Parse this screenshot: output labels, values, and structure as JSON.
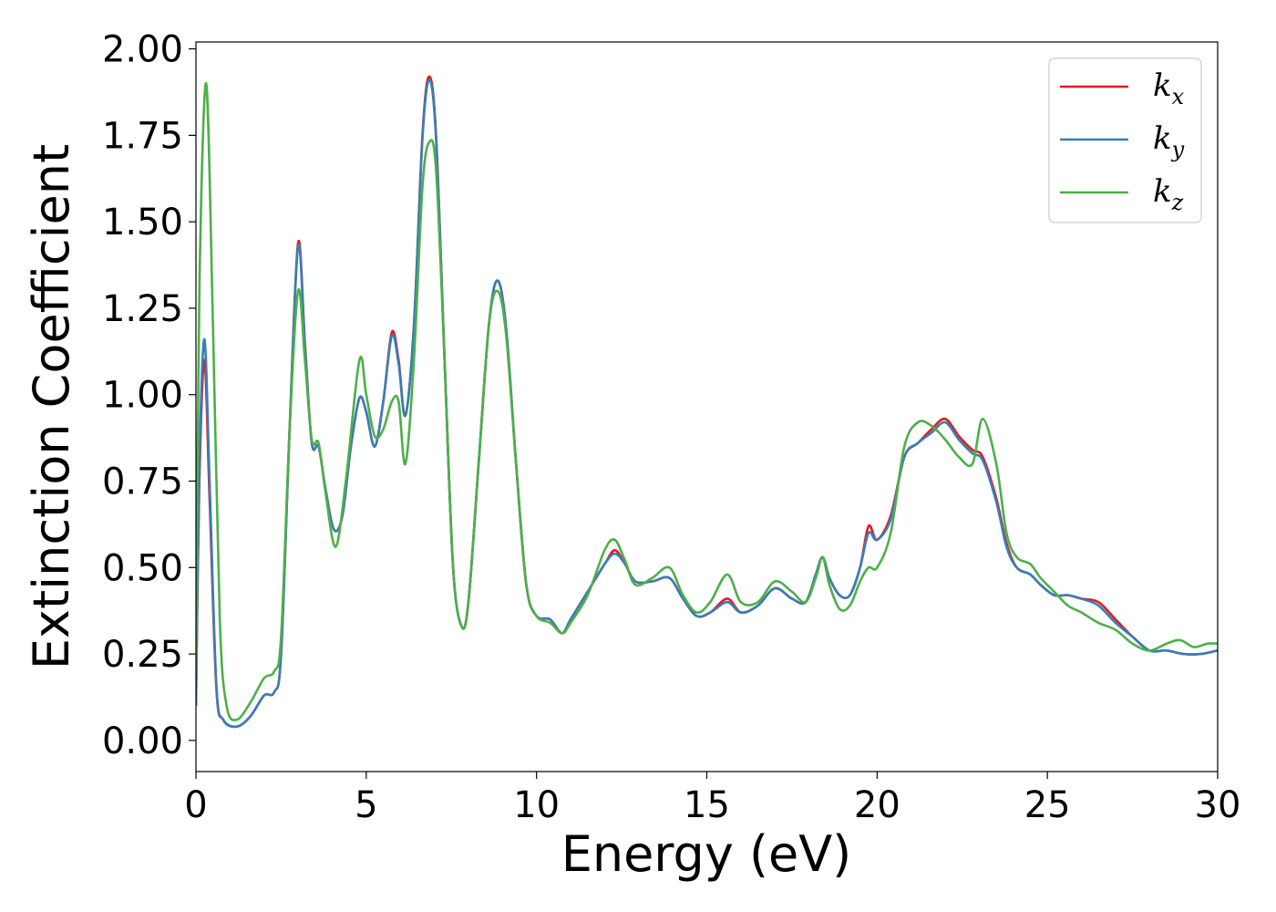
{
  "chart_data": {
    "type": "line",
    "xlabel": "Energy (eV)",
    "ylabel": "Extinction Coefficient",
    "xlim": [
      0,
      30
    ],
    "ylim": [
      -0.09,
      2.02
    ],
    "x_ticks": [
      0,
      5,
      10,
      15,
      20,
      25,
      30
    ],
    "x_tick_labels": [
      "0",
      "5",
      "10",
      "15",
      "20",
      "25",
      "30"
    ],
    "y_ticks": [
      0,
      0.25,
      0.5,
      0.75,
      1.0,
      1.25,
      1.5,
      1.75,
      2.0
    ],
    "y_tick_labels": [
      "0.00",
      "0.25",
      "0.50",
      "0.75",
      "1.00",
      "1.25",
      "1.50",
      "1.75",
      "2.00"
    ],
    "grid": false,
    "legend_position": "top-right",
    "series": [
      {
        "name": "k_x",
        "legend_base": "k",
        "legend_sub": "x",
        "color": "#e41a1c",
        "points": [
          [
            0,
            0.1
          ],
          [
            0.1,
            0.75
          ],
          [
            0.25,
            1.1
          ],
          [
            0.4,
            0.7
          ],
          [
            0.6,
            0.15
          ],
          [
            0.8,
            0.06
          ],
          [
            1.2,
            0.04
          ],
          [
            1.6,
            0.07
          ],
          [
            2.0,
            0.13
          ],
          [
            2.3,
            0.14
          ],
          [
            2.5,
            0.25
          ],
          [
            2.75,
            0.9
          ],
          [
            3.0,
            1.44
          ],
          [
            3.2,
            1.15
          ],
          [
            3.4,
            0.86
          ],
          [
            3.6,
            0.85
          ],
          [
            3.8,
            0.73
          ],
          [
            4.05,
            0.61
          ],
          [
            4.3,
            0.65
          ],
          [
            4.55,
            0.85
          ],
          [
            4.8,
            0.99
          ],
          [
            5.0,
            0.95
          ],
          [
            5.25,
            0.85
          ],
          [
            5.5,
            0.98
          ],
          [
            5.75,
            1.18
          ],
          [
            5.95,
            1.1
          ],
          [
            6.15,
            0.94
          ],
          [
            6.4,
            1.2
          ],
          [
            6.65,
            1.75
          ],
          [
            6.85,
            1.92
          ],
          [
            7.05,
            1.75
          ],
          [
            7.3,
            1.1
          ],
          [
            7.55,
            0.5
          ],
          [
            7.8,
            0.33
          ],
          [
            8.0,
            0.4
          ],
          [
            8.3,
            0.8
          ],
          [
            8.6,
            1.2
          ],
          [
            8.85,
            1.33
          ],
          [
            9.1,
            1.2
          ],
          [
            9.4,
            0.8
          ],
          [
            9.7,
            0.45
          ],
          [
            10.0,
            0.36
          ],
          [
            10.4,
            0.35
          ],
          [
            10.75,
            0.31
          ],
          [
            11.0,
            0.35
          ],
          [
            11.5,
            0.43
          ],
          [
            12.0,
            0.51
          ],
          [
            12.3,
            0.55
          ],
          [
            12.6,
            0.51
          ],
          [
            12.9,
            0.46
          ],
          [
            13.4,
            0.46
          ],
          [
            13.9,
            0.47
          ],
          [
            14.3,
            0.41
          ],
          [
            14.7,
            0.36
          ],
          [
            15.1,
            0.37
          ],
          [
            15.6,
            0.41
          ],
          [
            16.0,
            0.37
          ],
          [
            16.5,
            0.39
          ],
          [
            17.0,
            0.44
          ],
          [
            17.5,
            0.41
          ],
          [
            17.9,
            0.4
          ],
          [
            18.2,
            0.48
          ],
          [
            18.4,
            0.53
          ],
          [
            18.6,
            0.47
          ],
          [
            18.9,
            0.42
          ],
          [
            19.2,
            0.42
          ],
          [
            19.5,
            0.5
          ],
          [
            19.75,
            0.62
          ],
          [
            20.0,
            0.58
          ],
          [
            20.4,
            0.65
          ],
          [
            20.8,
            0.82
          ],
          [
            21.2,
            0.86
          ],
          [
            21.6,
            0.9
          ],
          [
            22.0,
            0.93
          ],
          [
            22.4,
            0.88
          ],
          [
            22.8,
            0.84
          ],
          [
            23.1,
            0.82
          ],
          [
            23.5,
            0.7
          ],
          [
            23.8,
            0.57
          ],
          [
            24.1,
            0.5
          ],
          [
            24.5,
            0.48
          ],
          [
            24.8,
            0.45
          ],
          [
            25.2,
            0.42
          ],
          [
            25.6,
            0.42
          ],
          [
            26.0,
            0.41
          ],
          [
            26.5,
            0.4
          ],
          [
            27.0,
            0.35
          ],
          [
            27.5,
            0.3
          ],
          [
            28.0,
            0.26
          ],
          [
            28.5,
            0.26
          ],
          [
            29.0,
            0.25
          ],
          [
            29.5,
            0.25
          ],
          [
            30.0,
            0.26
          ]
        ]
      },
      {
        "name": "k_y",
        "legend_base": "k",
        "legend_sub": "y",
        "color": "#377eb8",
        "points": [
          [
            0,
            0.1
          ],
          [
            0.1,
            0.8
          ],
          [
            0.25,
            1.16
          ],
          [
            0.4,
            0.75
          ],
          [
            0.6,
            0.16
          ],
          [
            0.8,
            0.06
          ],
          [
            1.2,
            0.04
          ],
          [
            1.6,
            0.07
          ],
          [
            2.0,
            0.13
          ],
          [
            2.3,
            0.14
          ],
          [
            2.5,
            0.25
          ],
          [
            2.75,
            0.9
          ],
          [
            3.0,
            1.43
          ],
          [
            3.2,
            1.14
          ],
          [
            3.4,
            0.86
          ],
          [
            3.6,
            0.85
          ],
          [
            3.8,
            0.73
          ],
          [
            4.05,
            0.61
          ],
          [
            4.3,
            0.65
          ],
          [
            4.55,
            0.85
          ],
          [
            4.8,
            0.99
          ],
          [
            5.0,
            0.95
          ],
          [
            5.25,
            0.85
          ],
          [
            5.5,
            0.98
          ],
          [
            5.75,
            1.17
          ],
          [
            5.95,
            1.09
          ],
          [
            6.15,
            0.94
          ],
          [
            6.4,
            1.2
          ],
          [
            6.65,
            1.74
          ],
          [
            6.85,
            1.91
          ],
          [
            7.05,
            1.74
          ],
          [
            7.3,
            1.1
          ],
          [
            7.55,
            0.5
          ],
          [
            7.8,
            0.33
          ],
          [
            8.0,
            0.4
          ],
          [
            8.3,
            0.8
          ],
          [
            8.6,
            1.2
          ],
          [
            8.85,
            1.33
          ],
          [
            9.1,
            1.2
          ],
          [
            9.4,
            0.8
          ],
          [
            9.7,
            0.45
          ],
          [
            10.0,
            0.36
          ],
          [
            10.4,
            0.35
          ],
          [
            10.75,
            0.31
          ],
          [
            11.0,
            0.35
          ],
          [
            11.5,
            0.43
          ],
          [
            12.0,
            0.51
          ],
          [
            12.3,
            0.54
          ],
          [
            12.6,
            0.51
          ],
          [
            12.9,
            0.46
          ],
          [
            13.4,
            0.46
          ],
          [
            13.9,
            0.47
          ],
          [
            14.3,
            0.41
          ],
          [
            14.7,
            0.36
          ],
          [
            15.1,
            0.37
          ],
          [
            15.6,
            0.4
          ],
          [
            16.0,
            0.37
          ],
          [
            16.5,
            0.39
          ],
          [
            17.0,
            0.44
          ],
          [
            17.5,
            0.41
          ],
          [
            17.9,
            0.4
          ],
          [
            18.2,
            0.48
          ],
          [
            18.4,
            0.53
          ],
          [
            18.6,
            0.47
          ],
          [
            18.9,
            0.42
          ],
          [
            19.2,
            0.42
          ],
          [
            19.5,
            0.5
          ],
          [
            19.75,
            0.6
          ],
          [
            20.0,
            0.58
          ],
          [
            20.4,
            0.64
          ],
          [
            20.8,
            0.82
          ],
          [
            21.2,
            0.86
          ],
          [
            21.6,
            0.89
          ],
          [
            22.0,
            0.92
          ],
          [
            22.4,
            0.87
          ],
          [
            22.8,
            0.83
          ],
          [
            23.1,
            0.81
          ],
          [
            23.5,
            0.69
          ],
          [
            23.8,
            0.56
          ],
          [
            24.1,
            0.5
          ],
          [
            24.5,
            0.48
          ],
          [
            24.8,
            0.45
          ],
          [
            25.2,
            0.42
          ],
          [
            25.6,
            0.42
          ],
          [
            26.0,
            0.41
          ],
          [
            26.5,
            0.39
          ],
          [
            27.0,
            0.34
          ],
          [
            27.5,
            0.3
          ],
          [
            28.0,
            0.26
          ],
          [
            28.5,
            0.26
          ],
          [
            29.0,
            0.25
          ],
          [
            29.5,
            0.25
          ],
          [
            30.0,
            0.26
          ]
        ]
      },
      {
        "name": "k_z",
        "legend_base": "k",
        "legend_sub": "z",
        "color": "#4daf4a",
        "points": [
          [
            0,
            0.2
          ],
          [
            0.1,
            1.3
          ],
          [
            0.3,
            1.9
          ],
          [
            0.5,
            1.2
          ],
          [
            0.7,
            0.35
          ],
          [
            0.9,
            0.1
          ],
          [
            1.2,
            0.06
          ],
          [
            1.6,
            0.11
          ],
          [
            2.0,
            0.18
          ],
          [
            2.3,
            0.2
          ],
          [
            2.5,
            0.3
          ],
          [
            2.75,
            0.9
          ],
          [
            3.0,
            1.3
          ],
          [
            3.2,
            1.1
          ],
          [
            3.4,
            0.87
          ],
          [
            3.6,
            0.86
          ],
          [
            3.8,
            0.72
          ],
          [
            4.1,
            0.56
          ],
          [
            4.4,
            0.75
          ],
          [
            4.8,
            1.1
          ],
          [
            5.0,
            1.0
          ],
          [
            5.25,
            0.88
          ],
          [
            5.5,
            0.9
          ],
          [
            5.75,
            0.98
          ],
          [
            5.95,
            0.98
          ],
          [
            6.15,
            0.8
          ],
          [
            6.4,
            1.1
          ],
          [
            6.65,
            1.6
          ],
          [
            6.85,
            1.73
          ],
          [
            7.05,
            1.65
          ],
          [
            7.3,
            1.1
          ],
          [
            7.55,
            0.5
          ],
          [
            7.8,
            0.33
          ],
          [
            8.0,
            0.4
          ],
          [
            8.3,
            0.8
          ],
          [
            8.6,
            1.2
          ],
          [
            8.85,
            1.3
          ],
          [
            9.1,
            1.18
          ],
          [
            9.4,
            0.8
          ],
          [
            9.7,
            0.45
          ],
          [
            10.0,
            0.36
          ],
          [
            10.4,
            0.34
          ],
          [
            10.75,
            0.31
          ],
          [
            11.0,
            0.34
          ],
          [
            11.5,
            0.42
          ],
          [
            12.0,
            0.55
          ],
          [
            12.3,
            0.58
          ],
          [
            12.6,
            0.52
          ],
          [
            12.9,
            0.45
          ],
          [
            13.4,
            0.47
          ],
          [
            13.9,
            0.5
          ],
          [
            14.3,
            0.42
          ],
          [
            14.7,
            0.37
          ],
          [
            15.1,
            0.4
          ],
          [
            15.6,
            0.48
          ],
          [
            16.0,
            0.4
          ],
          [
            16.5,
            0.4
          ],
          [
            17.0,
            0.46
          ],
          [
            17.5,
            0.43
          ],
          [
            17.9,
            0.4
          ],
          [
            18.2,
            0.47
          ],
          [
            18.4,
            0.53
          ],
          [
            18.6,
            0.45
          ],
          [
            18.9,
            0.38
          ],
          [
            19.2,
            0.39
          ],
          [
            19.5,
            0.46
          ],
          [
            19.75,
            0.5
          ],
          [
            20.0,
            0.5
          ],
          [
            20.4,
            0.6
          ],
          [
            20.8,
            0.85
          ],
          [
            21.2,
            0.92
          ],
          [
            21.6,
            0.91
          ],
          [
            22.0,
            0.87
          ],
          [
            22.4,
            0.82
          ],
          [
            22.8,
            0.8
          ],
          [
            23.1,
            0.93
          ],
          [
            23.5,
            0.8
          ],
          [
            23.8,
            0.6
          ],
          [
            24.1,
            0.53
          ],
          [
            24.5,
            0.51
          ],
          [
            24.8,
            0.47
          ],
          [
            25.2,
            0.43
          ],
          [
            25.6,
            0.39
          ],
          [
            26.0,
            0.37
          ],
          [
            26.5,
            0.34
          ],
          [
            27.0,
            0.32
          ],
          [
            27.5,
            0.28
          ],
          [
            28.0,
            0.26
          ],
          [
            28.5,
            0.28
          ],
          [
            28.9,
            0.29
          ],
          [
            29.3,
            0.27
          ],
          [
            29.7,
            0.28
          ],
          [
            30.0,
            0.28
          ]
        ]
      }
    ]
  }
}
